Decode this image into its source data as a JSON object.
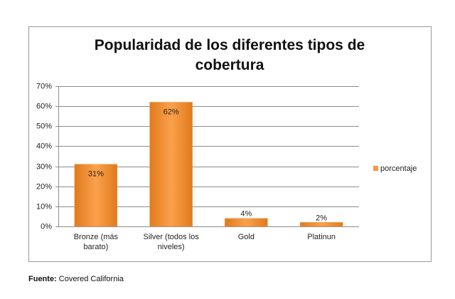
{
  "chart_data": {
    "type": "bar",
    "title": "Popularidad de los diferentes tipos de cobertura",
    "categories": [
      "Bronze (más barato)",
      "Silver (todos los niveles)",
      "Gold",
      "Platinun"
    ],
    "series": [
      {
        "name": "porcentaje",
        "color": "#f79646",
        "values": [
          31,
          62,
          4,
          2
        ],
        "value_labels": [
          "31%",
          "62%",
          "4%",
          "2%"
        ]
      }
    ],
    "ylim": [
      0,
      70
    ],
    "yticks": [
      {
        "value": 0,
        "label": "0%"
      },
      {
        "value": 10,
        "label": "10%"
      },
      {
        "value": 20,
        "label": "20%"
      },
      {
        "value": 30,
        "label": "30%"
      },
      {
        "value": 40,
        "label": "40%"
      },
      {
        "value": 50,
        "label": "50%"
      },
      {
        "value": 60,
        "label": "60%"
      },
      {
        "value": 70,
        "label": "70%"
      }
    ],
    "grid": true,
    "legend": "right"
  },
  "source_label": "Fuente:",
  "source": "Covered California"
}
